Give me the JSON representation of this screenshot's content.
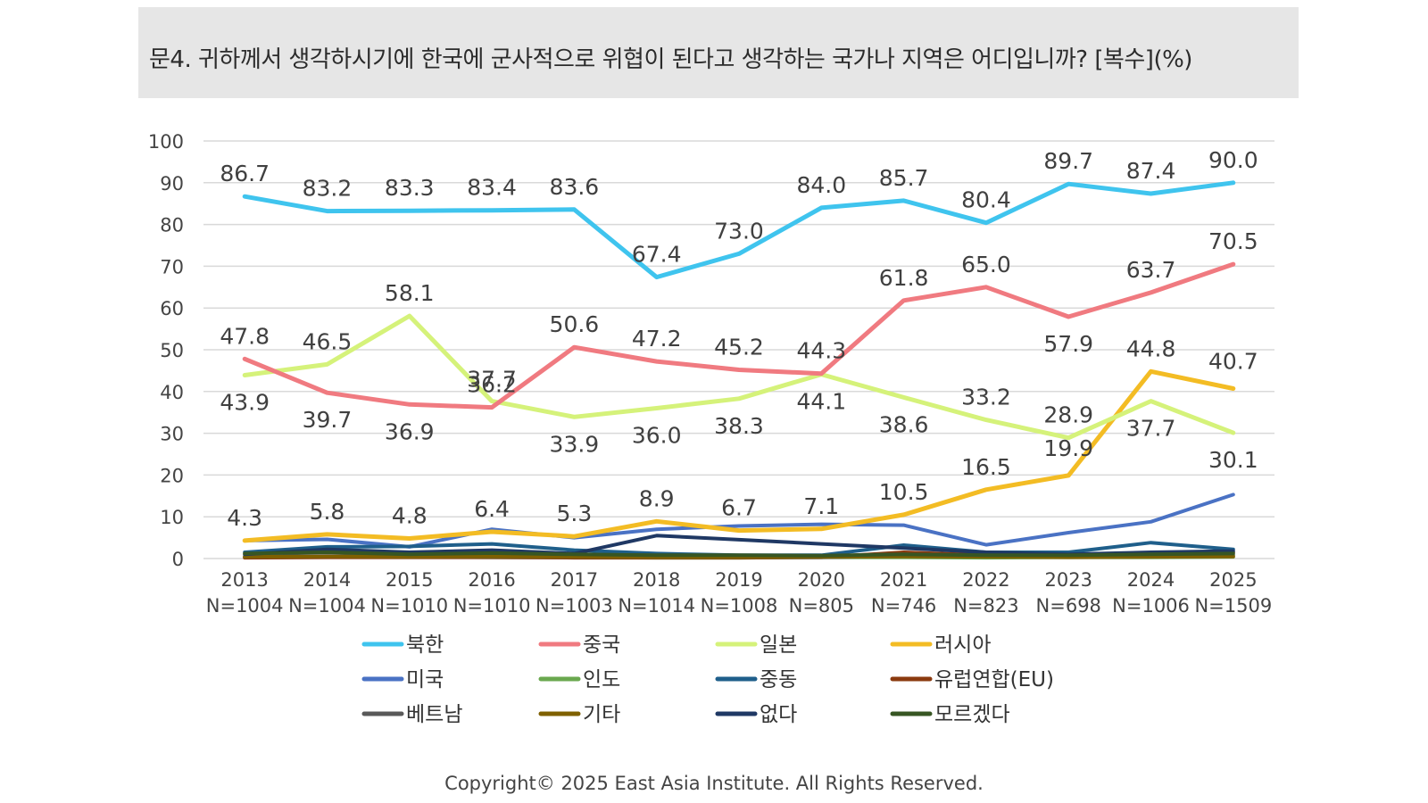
{
  "title": "문4. 귀하께서 생각하시기에 한국에 군사적으로 위협이 된다고 생각하는 국가나 지역은 어디입니까? [복수](%)",
  "footer": "Copyright© 2025 East Asia Institute. All Rights Reserved.",
  "chart_data": {
    "type": "line",
    "categories": [
      "2013",
      "2014",
      "2015",
      "2016",
      "2017",
      "2018",
      "2019",
      "2020",
      "2021",
      "2022",
      "2023",
      "2024",
      "2025"
    ],
    "category_subtitles": [
      "N=1004",
      "N=1004",
      "N=1010",
      "N=1010",
      "N=1003",
      "N=1014",
      "N=1008",
      "N=805",
      "N=746",
      "N=823",
      "N=698",
      "N=1006",
      "N=1509"
    ],
    "ylim": [
      0,
      100
    ],
    "yticks": [
      0,
      10,
      20,
      30,
      40,
      50,
      60,
      70,
      80,
      90,
      100
    ],
    "grid": true,
    "legend_position": "bottom",
    "series": [
      {
        "name": "북한",
        "color": "#3fc4ee",
        "values": [
          86.7,
          83.2,
          83.3,
          83.4,
          83.6,
          67.4,
          73.0,
          84.0,
          85.7,
          80.4,
          89.7,
          87.4,
          90.0
        ],
        "labels": [
          "86.7",
          "83.2",
          "83.3",
          "83.4",
          "83.6",
          "67.4",
          "73.0",
          "84.0",
          "85.7",
          "80.4",
          "89.7",
          "87.4",
          "90.0"
        ]
      },
      {
        "name": "중국",
        "color": "#f07a80",
        "values": [
          47.8,
          39.7,
          36.9,
          36.2,
          50.6,
          47.2,
          45.2,
          44.3,
          61.8,
          65.0,
          57.9,
          63.7,
          70.5
        ],
        "labels": [
          "47.8",
          "39.7",
          "36.9",
          "36.2",
          "50.6",
          "47.2",
          "45.2",
          "44.3",
          "61.8",
          "65.0",
          "57.9",
          "63.7",
          "70.5"
        ]
      },
      {
        "name": "일본",
        "color": "#d5f27a",
        "values": [
          43.9,
          46.5,
          58.1,
          37.7,
          33.9,
          36.0,
          38.3,
          44.1,
          38.6,
          33.2,
          28.9,
          37.7,
          30.1
        ],
        "labels": [
          "43.9",
          "46.5",
          "58.1",
          "37.7",
          "33.9",
          "36.0",
          "38.3",
          "44.1",
          "38.6",
          "33.2",
          "28.9",
          "37.7",
          "30.1"
        ]
      },
      {
        "name": "러시아",
        "color": "#f3bc24",
        "values": [
          4.3,
          5.8,
          4.8,
          6.4,
          5.3,
          8.9,
          6.7,
          7.1,
          10.5,
          16.5,
          19.9,
          44.8,
          40.7
        ],
        "labels": [
          "4.3",
          "5.8",
          "4.8",
          "6.4",
          "5.3",
          "8.9",
          "6.7",
          "7.1",
          "10.5",
          "16.5",
          "19.9",
          "44.8",
          "40.7"
        ]
      },
      {
        "name": "미국",
        "color": "#4a72c4",
        "values": [
          4.3,
          4.6,
          2.8,
          7.0,
          5.0,
          7.0,
          7.8,
          8.2,
          8.0,
          3.3,
          6.2,
          8.8,
          15.3
        ]
      },
      {
        "name": "인도",
        "color": "#6aa84f",
        "values": [
          0.3,
          0.5,
          0.4,
          0.3,
          0.3,
          0.2,
          0.2,
          0.3,
          0.3,
          0.2,
          0.3,
          0.3,
          0.4
        ]
      },
      {
        "name": "중동",
        "color": "#1f5f8b",
        "values": [
          1.5,
          2.8,
          2.9,
          3.5,
          2.0,
          1.2,
          0.8,
          0.8,
          3.2,
          1.5,
          1.5,
          3.8,
          2.2
        ]
      },
      {
        "name": "유럽연합(EU)",
        "color": "#8b3a0f",
        "values": [
          0.2,
          0.3,
          0.3,
          0.3,
          0.2,
          0.2,
          0.2,
          0.3,
          1.5,
          0.8,
          0.4,
          0.8,
          1.5
        ]
      },
      {
        "name": "베트남",
        "color": "#595959",
        "values": [
          0.5,
          0.6,
          0.5,
          0.4,
          0.4,
          0.3,
          0.3,
          0.3,
          0.6,
          0.5,
          0.4,
          0.5,
          0.8
        ]
      },
      {
        "name": "기타",
        "color": "#7f6000",
        "values": [
          0.4,
          0.5,
          0.4,
          0.5,
          0.4,
          0.3,
          0.3,
          0.4,
          0.5,
          0.4,
          0.3,
          0.4,
          0.5
        ]
      },
      {
        "name": "없다",
        "color": "#1f3864",
        "values": [
          1.0,
          2.2,
          1.5,
          2.0,
          1.2,
          5.5,
          4.5,
          3.5,
          2.5,
          1.5,
          1.0,
          1.5,
          1.8
        ]
      },
      {
        "name": "모르겠다",
        "color": "#375623",
        "values": [
          1.2,
          1.5,
          1.0,
          1.3,
          1.0,
          0.8,
          0.8,
          0.7,
          1.0,
          0.8,
          0.8,
          1.0,
          1.2
        ]
      }
    ]
  }
}
